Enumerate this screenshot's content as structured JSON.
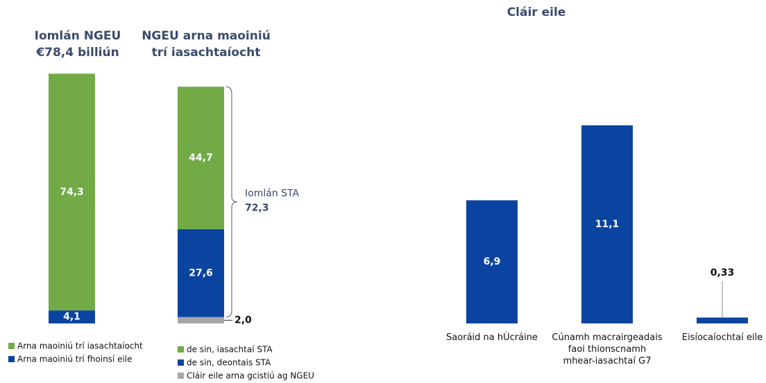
{
  "chart_data": [
    {
      "type": "stacked_bar",
      "title": [
        "Iomlán NGEU",
        "€78,4 billiún"
      ],
      "series": [
        {
          "name": "Arna maoiniú trí iasachtaíocht",
          "color": "#72aa45",
          "values": [
            74.3
          ],
          "value_labels": [
            "74,3"
          ]
        },
        {
          "name": "Arna maoiniú trí fhoinsí eile",
          "color": "#0b44a0",
          "values": [
            4.1
          ],
          "value_labels": [
            "4,1"
          ]
        }
      ]
    },
    {
      "type": "stacked_bar",
      "title": [
        "NGEU arna maoiniú",
        "trí iasachtaíocht"
      ],
      "series": [
        {
          "name": "de sin, iasachtaí STA",
          "color": "#72aa45",
          "values": [
            44.7
          ],
          "value_labels": [
            "44,7"
          ]
        },
        {
          "name": "de sin, deontais STA",
          "color": "#0b44a0",
          "values": [
            27.6
          ],
          "value_labels": [
            "27,6"
          ]
        },
        {
          "name": "Cláir eile arna gcistiú ag NGEU",
          "color": "#a6a6a6",
          "values": [
            2.0
          ],
          "value_labels": [
            "2,0"
          ]
        }
      ],
      "brace_label": "Iomlán STA",
      "brace_value": 72.3,
      "brace_value_label": "72,3"
    },
    {
      "type": "bar",
      "title": "Cláir eile",
      "categories": [
        "Saoráid na hÚcráine",
        "Cúnamh macrairgeadais faoi thionscnamh mhear-iasachtaí G7",
        "Eisíocaíochtaí eile"
      ],
      "values": [
        6.9,
        11.1,
        0.33
      ],
      "value_labels": [
        "6,9",
        "11,1",
        "0,33"
      ],
      "color": "#0b44a0"
    }
  ]
}
